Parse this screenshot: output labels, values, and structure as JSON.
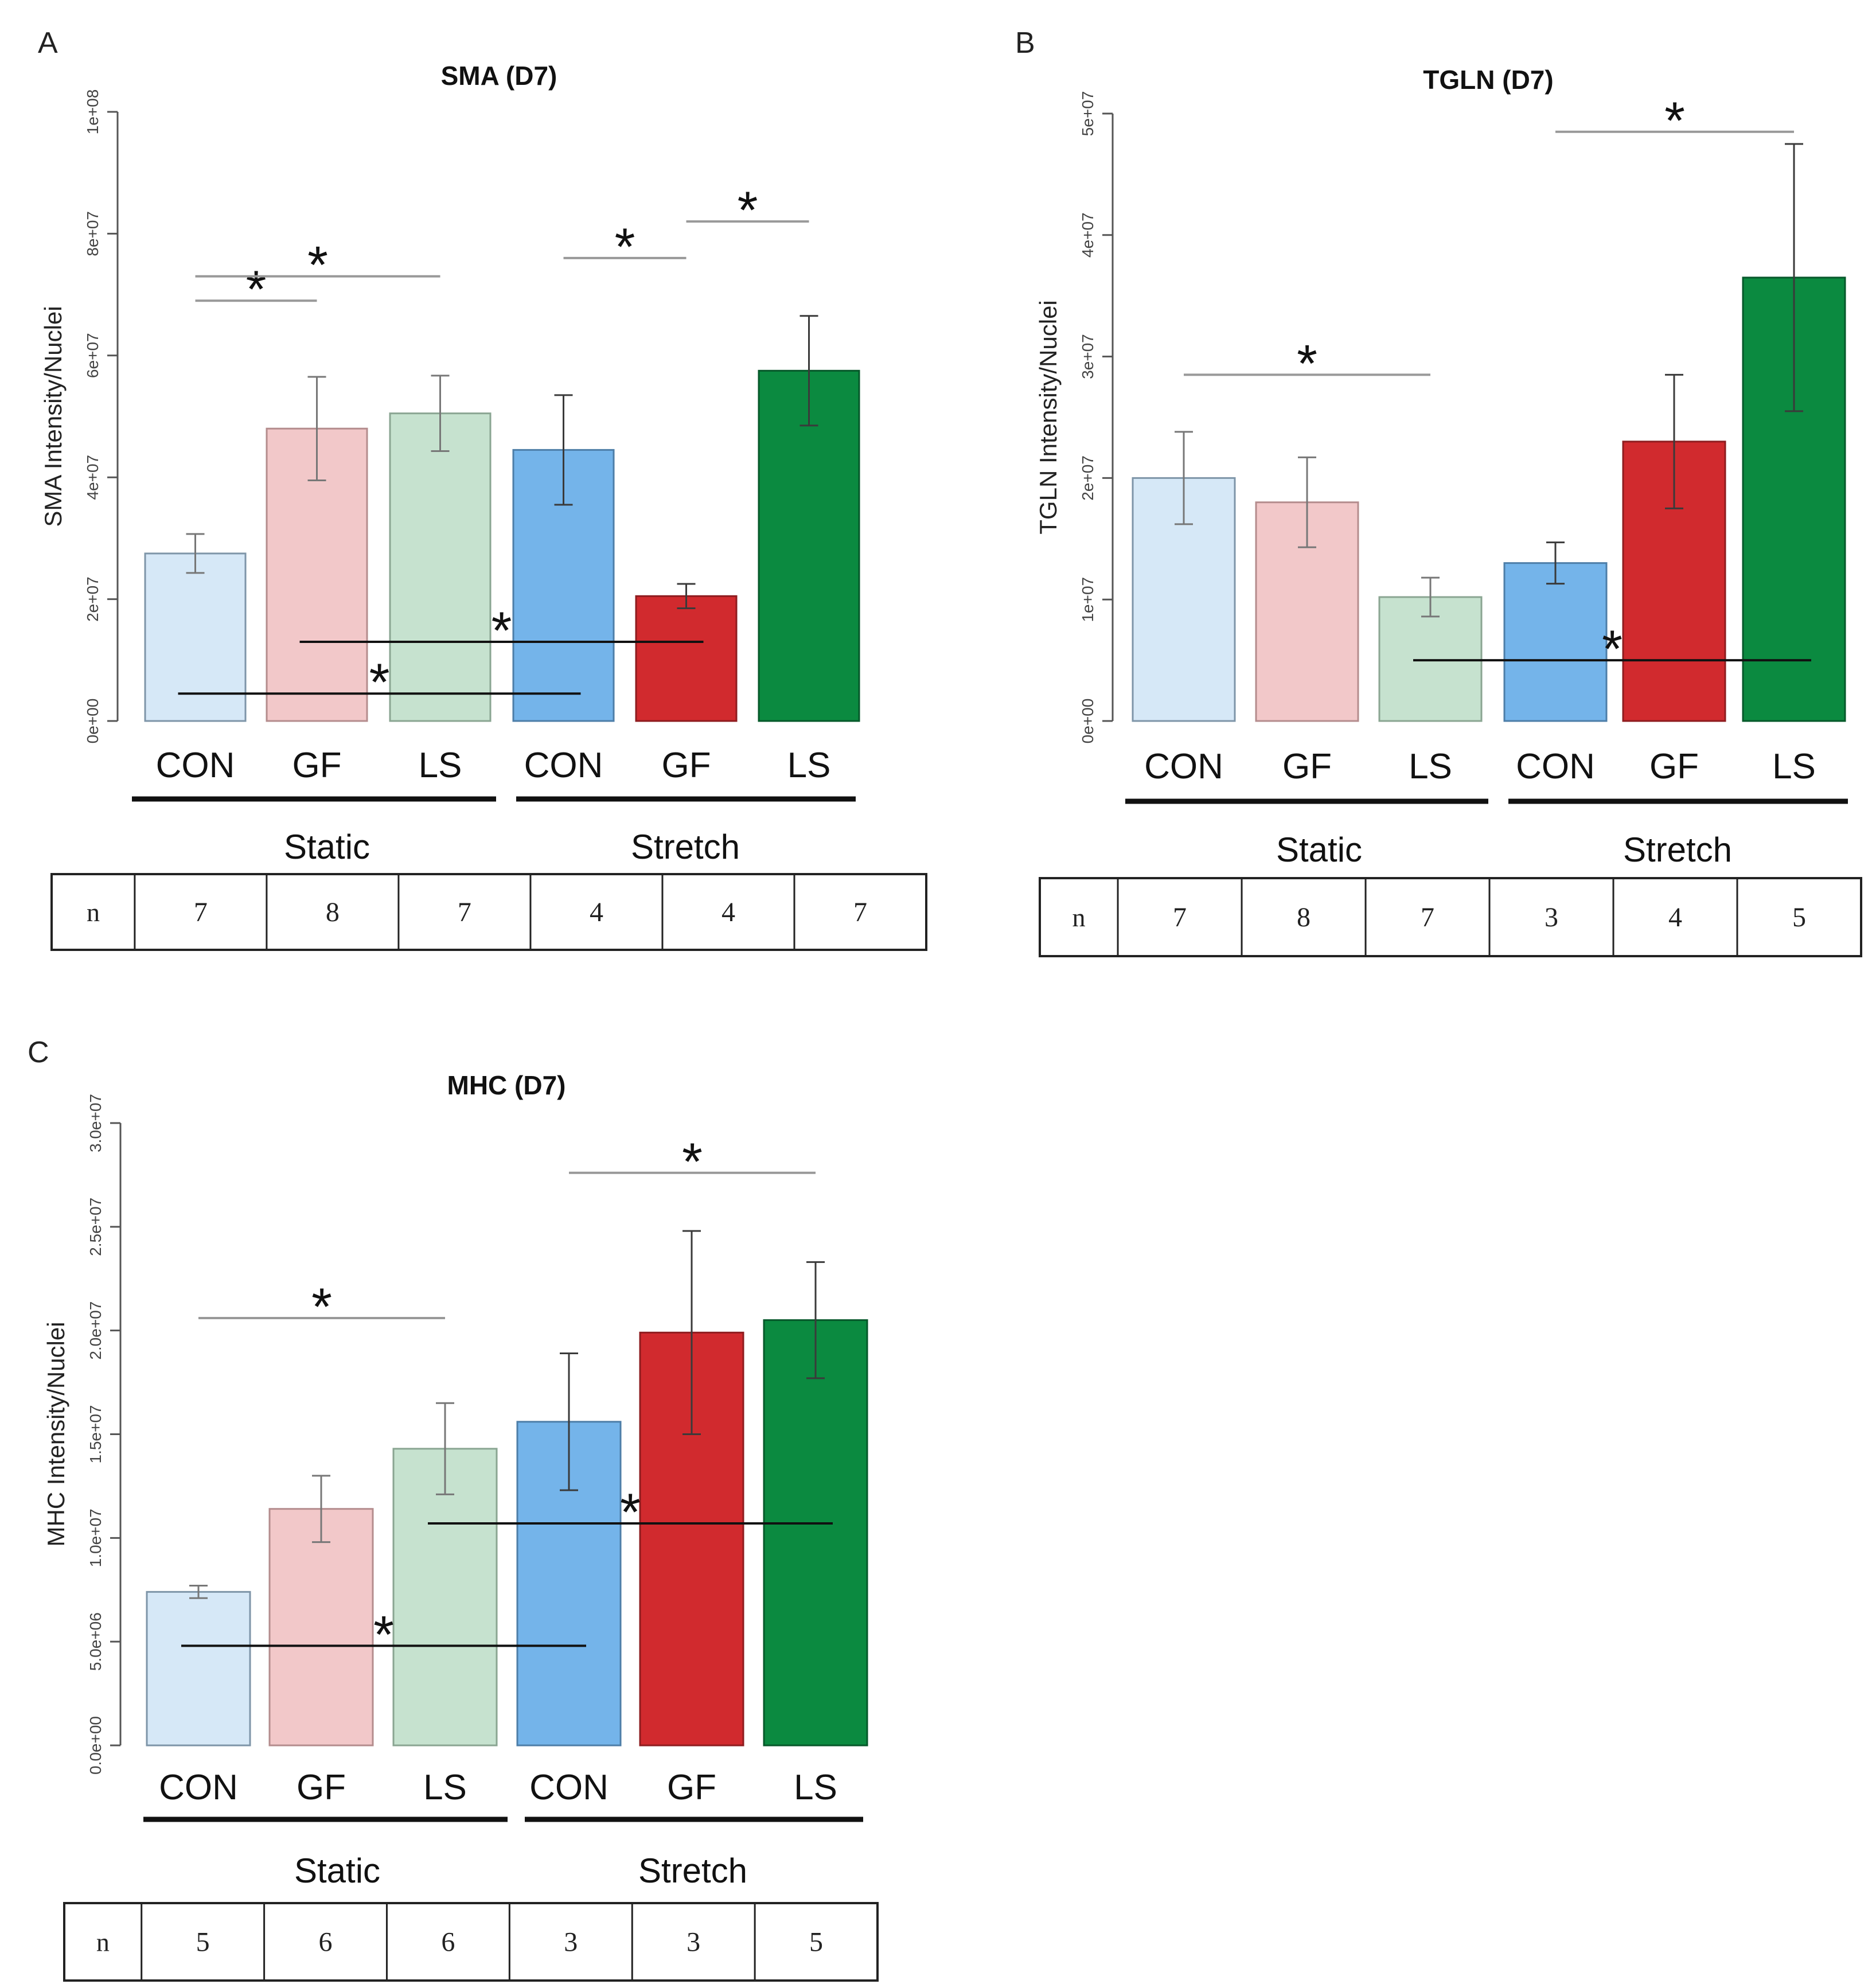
{
  "figure_labels": {
    "Category groups": [
      "Static",
      "Stretch"
    ],
    "n_label": "n"
  },
  "colors": {
    "static_con": "#d6e8f7",
    "static_gf": "#f2c8c9",
    "static_ls": "#c6e2cf",
    "stretch_con": "#74b4ea",
    "stretch_gf": "#d12a2e",
    "stretch_ls": "#0b8a40",
    "axis": "#555555",
    "sig_gray": "#999999",
    "sig_black": "#111111"
  },
  "chart_data": [
    {
      "panel": "A",
      "type": "bar",
      "title": "SMA (D7)",
      "ylabel": "SMA Intensity/Nuclei",
      "categories": [
        "CON",
        "GF",
        "LS",
        "CON",
        "GF",
        "LS"
      ],
      "groups": [
        "Static",
        "Stretch"
      ],
      "values": [
        27500000,
        48000000,
        50500000,
        44500000,
        20500000,
        57500000
      ],
      "error": [
        3200000,
        8500000,
        6200000,
        9000000,
        2000000,
        9000000
      ],
      "ylim": [
        0,
        100000000
      ],
      "yticks": [
        0,
        20000000,
        40000000,
        60000000,
        80000000,
        100000000
      ],
      "ytick_labels": [
        "0e+00",
        "2e+07",
        "4e+07",
        "6e+07",
        "8e+07",
        "1e+08"
      ],
      "n": [
        "7",
        "8",
        "7",
        "4",
        "4",
        "7"
      ],
      "significance": [
        {
          "from": 0,
          "to": 1,
          "y": 69000000,
          "style": "gray",
          "label": "*"
        },
        {
          "from": 0,
          "to": 2,
          "y": 73000000,
          "style": "gray",
          "label": "*"
        },
        {
          "from": 3,
          "to": 4,
          "y": 76000000,
          "style": "gray",
          "label": "*"
        },
        {
          "from": 4,
          "to": 5,
          "y": 82000000,
          "style": "gray",
          "label": "*"
        },
        {
          "from": 1,
          "to": 4,
          "y": 13000000,
          "style": "black",
          "label": "*"
        },
        {
          "from": 0,
          "to": 3,
          "y": 4500000,
          "style": "black",
          "label": "*"
        }
      ]
    },
    {
      "panel": "B",
      "type": "bar",
      "title": "TGLN (D7)",
      "ylabel": "TGLN Intensity/Nuclei",
      "categories": [
        "CON",
        "GF",
        "LS",
        "CON",
        "GF",
        "LS"
      ],
      "groups": [
        "Static",
        "Stretch"
      ],
      "values": [
        20000000,
        18000000,
        10200000,
        13000000,
        23000000,
        36500000
      ],
      "error": [
        3800000,
        3700000,
        1600000,
        1700000,
        5500000,
        11000000
      ],
      "ylim": [
        0,
        50000000
      ],
      "yticks": [
        0,
        10000000,
        20000000,
        30000000,
        40000000,
        50000000
      ],
      "ytick_labels": [
        "0e+00",
        "1e+07",
        "2e+07",
        "3e+07",
        "4e+07",
        "5e+07"
      ],
      "n": [
        "7",
        "8",
        "7",
        "3",
        "4",
        "5"
      ],
      "significance": [
        {
          "from": 0,
          "to": 2,
          "y": 28500000,
          "style": "gray",
          "label": "*"
        },
        {
          "from": 3,
          "to": 5,
          "y": 48500000,
          "style": "gray",
          "label": "*"
        },
        {
          "from": 2,
          "to": 5,
          "y": 5000000,
          "style": "black",
          "label": "*"
        }
      ]
    },
    {
      "panel": "C",
      "type": "bar",
      "title": "MHC (D7)",
      "ylabel": "MHC Intensity/Nuclei",
      "categories": [
        "CON",
        "GF",
        "LS",
        "CON",
        "GF",
        "LS"
      ],
      "groups": [
        "Static",
        "Stretch"
      ],
      "values": [
        7400000,
        11400000,
        14300000,
        15600000,
        19900000,
        20500000
      ],
      "error": [
        300000,
        1600000,
        2200000,
        3300000,
        4900000,
        2800000
      ],
      "ylim": [
        0,
        30000000
      ],
      "yticks": [
        0,
        5000000,
        10000000,
        15000000,
        20000000,
        25000000,
        30000000
      ],
      "ytick_labels": [
        "0.0e+00",
        "5.0e+06",
        "1.0e+07",
        "1.5e+07",
        "2.0e+07",
        "2.5e+07",
        "3.0e+07"
      ],
      "n": [
        "5",
        "6",
        "6",
        "3",
        "3",
        "5"
      ],
      "significance": [
        {
          "from": 0,
          "to": 2,
          "y": 20600000,
          "style": "gray",
          "label": "*"
        },
        {
          "from": 3,
          "to": 5,
          "y": 27600000,
          "style": "gray",
          "label": "*"
        },
        {
          "from": 0,
          "to": 3,
          "y": 4800000,
          "style": "black",
          "label": "*"
        },
        {
          "from": 2,
          "to": 5,
          "y": 10700000,
          "style": "black",
          "label": "*"
        }
      ]
    }
  ]
}
